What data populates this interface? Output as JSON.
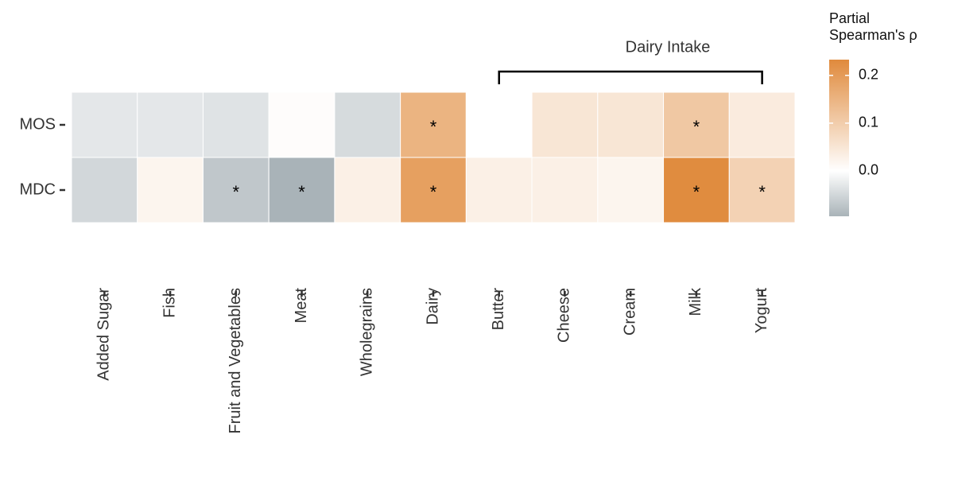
{
  "chart_data": {
    "type": "heatmap",
    "categories": [
      "Added Sugar",
      "Fish",
      "Fruit and Vegetables",
      "Meat",
      "Wholegrains",
      "Dairy",
      "Butter",
      "Cheese",
      "Cream",
      "Milk",
      "Yogurt"
    ],
    "rows": [
      "MOS",
      "MDC"
    ],
    "values": [
      [
        -0.03,
        -0.03,
        -0.035,
        0.005,
        -0.045,
        0.15,
        0.0,
        0.05,
        0.05,
        0.11,
        0.04
      ],
      [
        -0.05,
        0.02,
        -0.07,
        -0.095,
        0.03,
        0.19,
        0.03,
        0.03,
        0.02,
        0.23,
        0.09
      ]
    ],
    "value_labels": [
      [
        null,
        null,
        null,
        null,
        null,
        "*",
        null,
        null,
        null,
        "*",
        null
      ],
      [
        null,
        null,
        "*",
        "*",
        null,
        "*",
        null,
        null,
        null,
        "*",
        "*"
      ]
    ],
    "bracket": {
      "label": "Dairy Intake",
      "from": "Butter",
      "to": "Yogurt"
    },
    "legend_title": [
      "Partial",
      "Spearman's ρ"
    ],
    "zlim": [
      -0.095,
      0.233
    ],
    "zticks": [
      {
        "value": 0,
        "label": "0.0"
      },
      0.1,
      0.2
    ],
    "colors": {
      "low": "#a9b3b8",
      "mid": "#ffffff",
      "high": "#e08a3c"
    }
  }
}
